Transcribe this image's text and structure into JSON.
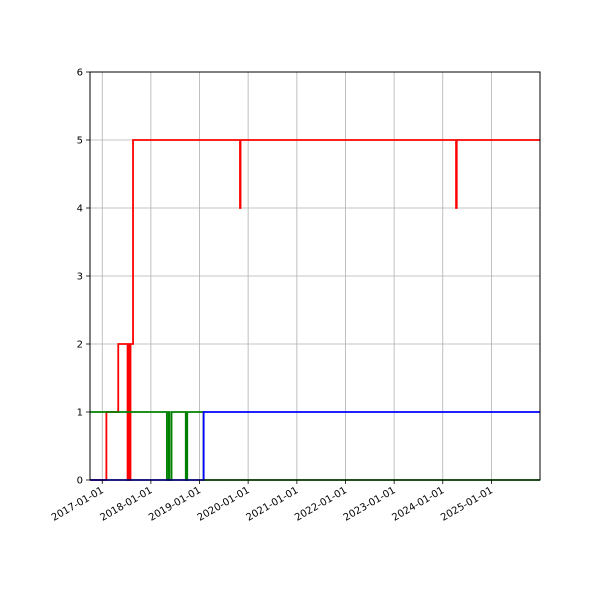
{
  "chart_data": {
    "type": "line",
    "title": "",
    "xlabel": "",
    "ylabel": "",
    "x_axis": "date",
    "xlim": [
      "2016-10-01",
      "2025-12-31"
    ],
    "ylim": [
      0,
      6
    ],
    "grid": true,
    "legend": "none",
    "x_ticks": [
      "2017-01-01",
      "2018-01-01",
      "2019-01-01",
      "2020-01-01",
      "2021-01-01",
      "2022-01-01",
      "2023-01-01",
      "2024-01-01",
      "2025-01-01"
    ],
    "y_ticks": [
      "0",
      "1",
      "2",
      "3",
      "4",
      "5",
      "6"
    ],
    "series": [
      {
        "color": "#ff0000",
        "step": "post",
        "points": [
          [
            "2016-10-01",
            0
          ],
          [
            "2017-02-01",
            1
          ],
          [
            "2017-05-01",
            2
          ],
          [
            "2017-07-10",
            0
          ],
          [
            "2017-07-20",
            2
          ],
          [
            "2017-07-25",
            0
          ],
          [
            "2017-08-01",
            2
          ],
          [
            "2017-08-20",
            5
          ],
          [
            "2019-11-01",
            4
          ],
          [
            "2019-11-05",
            5
          ],
          [
            "2024-04-10",
            4
          ],
          [
            "2024-04-15",
            5
          ],
          [
            "2025-12-31",
            5
          ]
        ]
      },
      {
        "color": "#008000",
        "step": "post",
        "points": [
          [
            "2016-10-01",
            1
          ],
          [
            "2018-05-01",
            0
          ],
          [
            "2018-05-15",
            1
          ],
          [
            "2018-05-20",
            0
          ],
          [
            "2018-06-05",
            1
          ],
          [
            "2018-09-20",
            0
          ],
          [
            "2018-10-01",
            1
          ],
          [
            "2019-02-01",
            0
          ],
          [
            "2025-12-31",
            0
          ]
        ]
      },
      {
        "color": "#0000ff",
        "step": "post",
        "points": [
          [
            "2016-10-01",
            0
          ],
          [
            "2018-09-25",
            0
          ],
          [
            "2018-09-26",
            0
          ],
          [
            "2019-02-01",
            1
          ],
          [
            "2025-12-31",
            1
          ]
        ]
      }
    ]
  }
}
